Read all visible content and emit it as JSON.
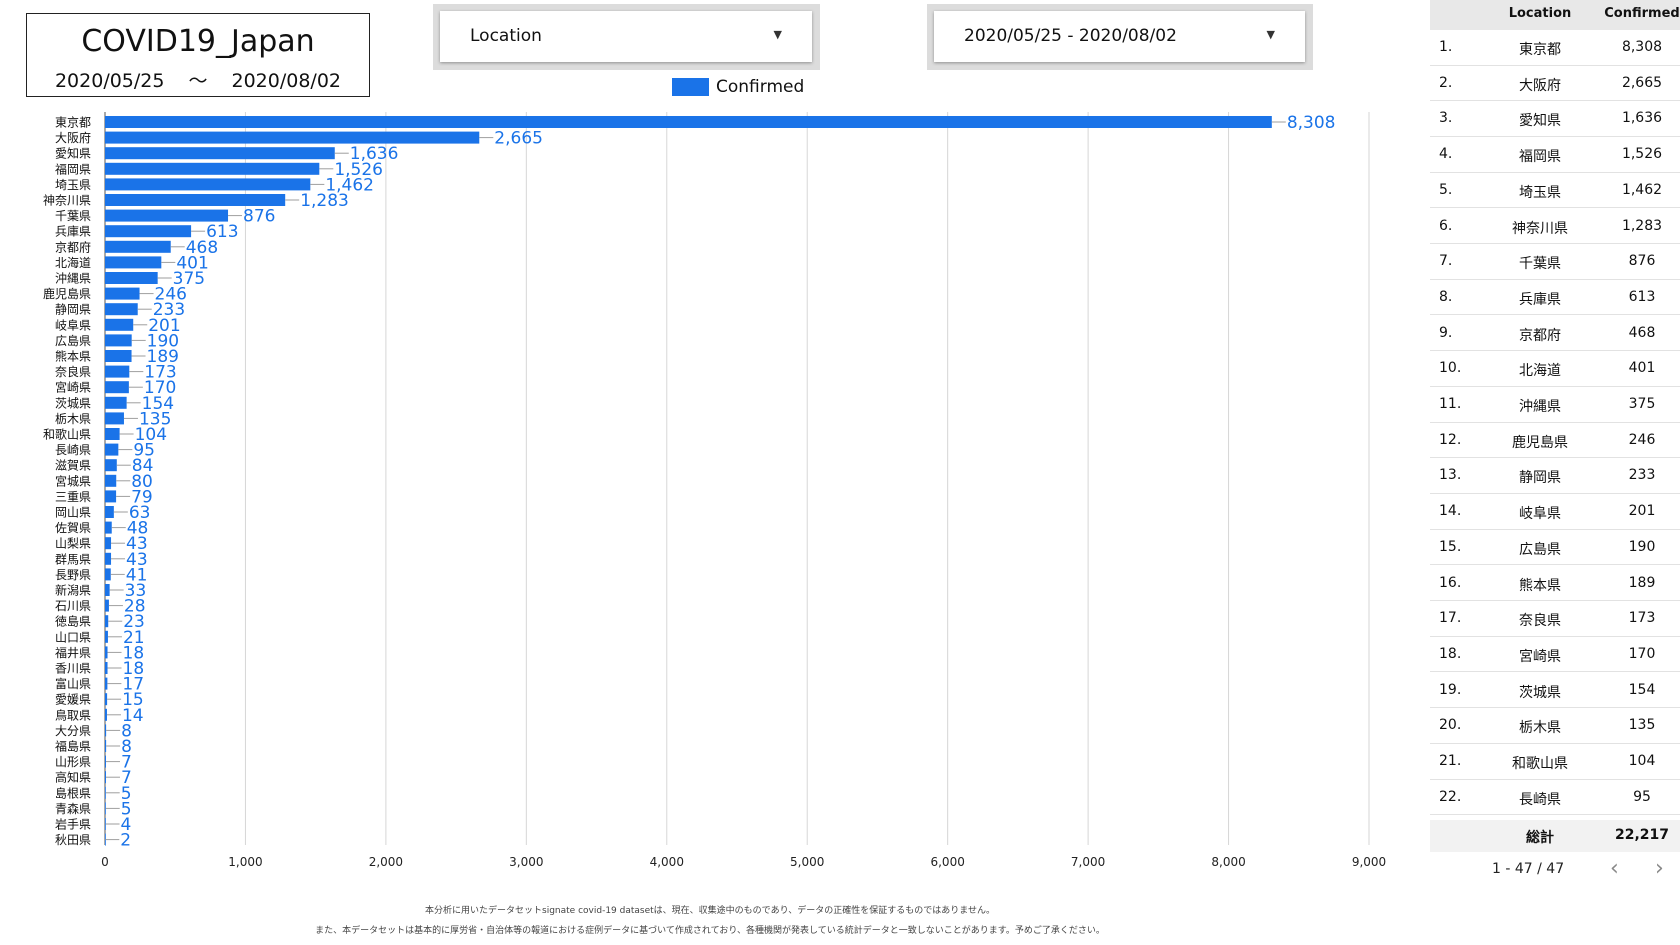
{
  "header": {
    "title": "COVID19_Japan",
    "date_start": "2020/05/25",
    "date_sep": "〜",
    "date_end": "2020/08/02"
  },
  "controls": {
    "location_dropdown": {
      "label": "Location",
      "arrow_icon": "caret-down-icon"
    },
    "date_dropdown": {
      "label": "2020/05/25 - 2020/08/02",
      "arrow_icon": "caret-down-icon"
    }
  },
  "chart_data": {
    "type": "bar",
    "orientation": "horizontal",
    "series": [
      {
        "name": "Confirmed",
        "color": "#1a73e8",
        "values": [
          8308,
          2665,
          1636,
          1526,
          1462,
          1283,
          876,
          613,
          468,
          401,
          375,
          246,
          233,
          201,
          190,
          189,
          173,
          170,
          154,
          135,
          104,
          95,
          84,
          80,
          79,
          63,
          48,
          43,
          43,
          41,
          33,
          28,
          23,
          21,
          18,
          18,
          17,
          15,
          14,
          8,
          8,
          7,
          7,
          5,
          5,
          4,
          2
        ]
      }
    ],
    "categories": [
      "東京都",
      "大阪府",
      "愛知県",
      "福岡県",
      "埼玉県",
      "神奈川県",
      "千葉県",
      "兵庫県",
      "京都府",
      "北海道",
      "沖縄県",
      "鹿児島県",
      "静岡県",
      "岐阜県",
      "広島県",
      "熊本県",
      "奈良県",
      "宮崎県",
      "茨城県",
      "栃木県",
      "和歌山県",
      "長崎県",
      "滋賀県",
      "宮城県",
      "三重県",
      "岡山県",
      "佐賀県",
      "山梨県",
      "群馬県",
      "長野県",
      "新潟県",
      "石川県",
      "徳島県",
      "山口県",
      "福井県",
      "香川県",
      "富山県",
      "愛媛県",
      "鳥取県",
      "大分県",
      "福島県",
      "山形県",
      "高知県",
      "島根県",
      "青森県",
      "岩手県",
      "秋田県"
    ],
    "data_labels": [
      "8,308",
      "2,665",
      "1,636",
      "1,526",
      "1,462",
      "1,283",
      "876",
      "613",
      "468",
      "401",
      "375",
      "246",
      "233",
      "201",
      "190",
      "189",
      "173",
      "170",
      "154",
      "135",
      "104",
      "95",
      "84",
      "80",
      "79",
      "63",
      "48",
      "43",
      "43",
      "41",
      "33",
      "28",
      "23",
      "21",
      "18",
      "18",
      "17",
      "15",
      "14",
      "8",
      "8",
      "7",
      "7",
      "5",
      "5",
      "4",
      "2"
    ],
    "xlim": [
      0,
      9000
    ],
    "x_ticks": [
      0,
      1000,
      2000,
      3000,
      4000,
      5000,
      6000,
      7000,
      8000,
      9000
    ],
    "x_tick_labels": [
      "0",
      "1,000",
      "2,000",
      "3,000",
      "4,000",
      "5,000",
      "6,000",
      "7,000",
      "8,000",
      "9,000"
    ],
    "grid": true,
    "legend_position": "top-center",
    "legend_entries": [
      "Confirmed"
    ]
  },
  "table": {
    "columns": [
      "Location",
      "Confirmed"
    ],
    "rows": [
      {
        "rank": "1.",
        "location": "東京都",
        "confirmed": "8,308"
      },
      {
        "rank": "2.",
        "location": "大阪府",
        "confirmed": "2,665"
      },
      {
        "rank": "3.",
        "location": "愛知県",
        "confirmed": "1,636"
      },
      {
        "rank": "4.",
        "location": "福岡県",
        "confirmed": "1,526"
      },
      {
        "rank": "5.",
        "location": "埼玉県",
        "confirmed": "1,462"
      },
      {
        "rank": "6.",
        "location": "神奈川県",
        "confirmed": "1,283"
      },
      {
        "rank": "7.",
        "location": "千葉県",
        "confirmed": "876"
      },
      {
        "rank": "8.",
        "location": "兵庫県",
        "confirmed": "613"
      },
      {
        "rank": "9.",
        "location": "京都府",
        "confirmed": "468"
      },
      {
        "rank": "10.",
        "location": "北海道",
        "confirmed": "401"
      },
      {
        "rank": "11.",
        "location": "沖縄県",
        "confirmed": "375"
      },
      {
        "rank": "12.",
        "location": "鹿児島県",
        "confirmed": "246"
      },
      {
        "rank": "13.",
        "location": "静岡県",
        "confirmed": "233"
      },
      {
        "rank": "14.",
        "location": "岐阜県",
        "confirmed": "201"
      },
      {
        "rank": "15.",
        "location": "広島県",
        "confirmed": "190"
      },
      {
        "rank": "16.",
        "location": "熊本県",
        "confirmed": "189"
      },
      {
        "rank": "17.",
        "location": "奈良県",
        "confirmed": "173"
      },
      {
        "rank": "18.",
        "location": "宮崎県",
        "confirmed": "170"
      },
      {
        "rank": "19.",
        "location": "茨城県",
        "confirmed": "154"
      },
      {
        "rank": "20.",
        "location": "栃木県",
        "confirmed": "135"
      },
      {
        "rank": "21.",
        "location": "和歌山県",
        "confirmed": "104"
      },
      {
        "rank": "22.",
        "location": "長崎県",
        "confirmed": "95"
      }
    ],
    "total_label": "総計",
    "total_value": "22,217",
    "pagination": "1 - 47 / 47",
    "prev_icon": "chevron-left-icon",
    "next_icon": "chevron-right-icon"
  },
  "footnotes": [
    "本分析に用いたデータセットsignate covid-19 datasetは、現在、収集途中のものであり、データの正確性を保証するものではありません。",
    "また、本データセットは基本的に厚労省・自治体等の報道における症例データに基づいて作成されており、各種機関が発表している統計データと一致しないことがあります。予めご了承ください。"
  ]
}
